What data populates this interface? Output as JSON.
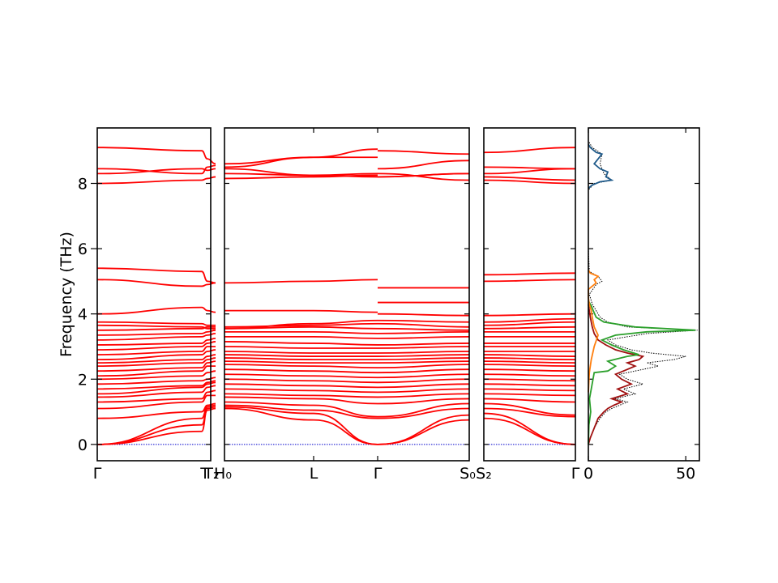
{
  "chart_data": [
    {
      "type": "line",
      "title": "",
      "ylabel": "Frequency (THz)",
      "ylim": [
        -0.5,
        9.7
      ],
      "yticks": [
        0,
        2,
        4,
        6,
        8
      ],
      "line_color": "#ff0000",
      "zero_line_color": "#0000cc",
      "segments": [
        {
          "x_ticks": [
            "Γ",
            "T",
            "T₂",
            "H₀"
          ],
          "bands": [
            [
              0,
              0.8,
              1.15,
              1.2
            ],
            [
              0,
              0.6,
              1.05,
              1.1
            ],
            [
              0,
              0.4,
              1.1,
              1.15
            ],
            [
              0.8,
              1.0,
              1.2,
              1.25
            ],
            [
              1.1,
              1.3,
              1.5,
              1.5
            ],
            [
              1.3,
              1.4,
              1.6,
              1.65
            ],
            [
              1.45,
              1.6,
              1.75,
              1.8
            ],
            [
              1.55,
              1.75,
              1.85,
              1.9
            ],
            [
              1.7,
              1.8,
              1.9,
              1.95
            ],
            [
              1.85,
              1.95,
              2.0,
              2.05
            ],
            [
              2.0,
              2.1,
              2.2,
              2.25
            ],
            [
              2.1,
              2.25,
              2.4,
              2.4
            ],
            [
              2.25,
              2.35,
              2.5,
              2.55
            ],
            [
              2.4,
              2.5,
              2.6,
              2.65
            ],
            [
              2.5,
              2.6,
              2.7,
              2.75
            ],
            [
              2.6,
              2.75,
              2.85,
              2.9
            ],
            [
              2.75,
              2.85,
              3.0,
              3.0
            ],
            [
              2.9,
              3.0,
              3.1,
              3.15
            ],
            [
              3.05,
              3.1,
              3.2,
              3.25
            ],
            [
              3.2,
              3.3,
              3.35,
              3.4
            ],
            [
              3.35,
              3.4,
              3.45,
              3.5
            ],
            [
              3.5,
              3.55,
              3.6,
              3.6
            ],
            [
              3.65,
              3.6,
              3.55,
              3.55
            ],
            [
              3.75,
              3.7,
              3.65,
              3.65
            ],
            [
              4.0,
              4.2,
              4.1,
              4.05
            ],
            [
              5.4,
              5.3,
              5.0,
              4.95
            ],
            [
              5.05,
              4.85,
              4.9,
              4.95
            ],
            [
              8.0,
              8.1,
              8.15,
              8.2
            ],
            [
              8.3,
              8.45,
              8.4,
              8.45
            ],
            [
              8.45,
              8.3,
              8.5,
              8.55
            ],
            [
              9.1,
              9.0,
              8.75,
              8.6
            ]
          ]
        },
        {
          "x_ticks": [
            "H₀",
            "L",
            "Γ"
          ],
          "bands": [
            [
              1.15,
              0.95,
              0
            ],
            [
              1.1,
              0.75,
              0
            ],
            [
              1.2,
              1.05,
              0.8
            ],
            [
              1.3,
              1.2,
              0.85
            ],
            [
              1.45,
              1.4,
              1.25
            ],
            [
              1.55,
              1.5,
              1.45
            ],
            [
              1.7,
              1.65,
              1.6
            ],
            [
              1.85,
              1.8,
              1.75
            ],
            [
              2.0,
              1.95,
              1.9
            ],
            [
              2.15,
              2.1,
              2.05
            ],
            [
              2.3,
              2.25,
              2.2
            ],
            [
              2.45,
              2.4,
              2.35
            ],
            [
              2.55,
              2.5,
              2.5
            ],
            [
              2.65,
              2.6,
              2.6
            ],
            [
              2.75,
              2.7,
              2.7
            ],
            [
              2.85,
              2.8,
              2.8
            ],
            [
              3.0,
              2.95,
              2.95
            ],
            [
              3.15,
              3.1,
              3.05
            ],
            [
              3.3,
              3.3,
              3.25
            ],
            [
              3.45,
              3.45,
              3.4
            ],
            [
              3.55,
              3.6,
              3.55
            ],
            [
              3.6,
              3.65,
              3.7
            ],
            [
              3.55,
              3.7,
              3.8
            ],
            [
              4.1,
              4.1,
              4.05
            ],
            [
              4.95,
              5.0,
              5.05
            ],
            [
              8.15,
              8.2,
              8.25
            ],
            [
              8.3,
              8.25,
              8.3
            ],
            [
              8.45,
              8.25,
              8.2
            ],
            [
              8.5,
              8.8,
              8.8
            ],
            [
              8.6,
              8.8,
              9.05
            ]
          ]
        },
        {
          "x_ticks": [
            "Γ",
            "S₀"
          ],
          "bands": [
            [
              0,
              0.9
            ],
            [
              0,
              0.75
            ],
            [
              0.8,
              1.1
            ],
            [
              0.85,
              1.25
            ],
            [
              1.25,
              1.4
            ],
            [
              1.45,
              1.55
            ],
            [
              1.6,
              1.7
            ],
            [
              1.75,
              1.85
            ],
            [
              1.9,
              2.0
            ],
            [
              2.05,
              2.15
            ],
            [
              2.2,
              2.3
            ],
            [
              2.35,
              2.45
            ],
            [
              2.5,
              2.55
            ],
            [
              2.6,
              2.65
            ],
            [
              2.7,
              2.75
            ],
            [
              2.8,
              2.85
            ],
            [
              2.95,
              3.0
            ],
            [
              3.05,
              3.1
            ],
            [
              3.25,
              3.3
            ],
            [
              3.4,
              3.45
            ],
            [
              3.55,
              3.5
            ],
            [
              3.7,
              3.6
            ],
            [
              3.8,
              3.75
            ],
            [
              4.0,
              3.95
            ],
            [
              4.35,
              4.35
            ],
            [
              4.8,
              4.8
            ],
            [
              8.2,
              8.3
            ],
            [
              8.3,
              8.1
            ],
            [
              8.2,
              8.3
            ],
            [
              8.45,
              8.7
            ],
            [
              9.0,
              8.9
            ]
          ]
        },
        {
          "x_ticks": [
            "S₂",
            "Γ"
          ],
          "bands": [
            [
              0.95,
              0
            ],
            [
              0.8,
              0
            ],
            [
              1.1,
              0.85
            ],
            [
              1.25,
              0.9
            ],
            [
              1.4,
              1.3
            ],
            [
              1.55,
              1.5
            ],
            [
              1.7,
              1.65
            ],
            [
              1.85,
              1.8
            ],
            [
              2.0,
              1.95
            ],
            [
              2.15,
              2.1
            ],
            [
              2.3,
              2.25
            ],
            [
              2.45,
              2.4
            ],
            [
              2.55,
              2.5
            ],
            [
              2.65,
              2.6
            ],
            [
              2.75,
              2.7
            ],
            [
              2.85,
              2.85
            ],
            [
              3.0,
              3.0
            ],
            [
              3.1,
              3.1
            ],
            [
              3.3,
              3.3
            ],
            [
              3.45,
              3.45
            ],
            [
              3.55,
              3.6
            ],
            [
              3.65,
              3.75
            ],
            [
              3.75,
              3.85
            ],
            [
              3.95,
              4.0
            ],
            [
              5.0,
              5.05
            ],
            [
              5.2,
              5.25
            ],
            [
              8.1,
              8.0
            ],
            [
              8.2,
              8.1
            ],
            [
              8.3,
              8.45
            ],
            [
              8.5,
              8.45
            ],
            [
              8.95,
              9.1
            ]
          ]
        }
      ]
    },
    {
      "type": "line",
      "title": "",
      "xlim": [
        0,
        57
      ],
      "xticks": [
        0,
        50
      ],
      "ylim": [
        -0.5,
        9.7
      ],
      "series": [
        {
          "color": "#000000",
          "style": "dotted",
          "points": [
            [
              0,
              0
            ],
            [
              1,
              0.2
            ],
            [
              3,
              0.5
            ],
            [
              6,
              0.8
            ],
            [
              9,
              1.0
            ],
            [
              12,
              1.1
            ],
            [
              16,
              1.2
            ],
            [
              20,
              1.3
            ],
            [
              14,
              1.4
            ],
            [
              24,
              1.55
            ],
            [
              18,
              1.7
            ],
            [
              28,
              1.85
            ],
            [
              20,
              2.0
            ],
            [
              16,
              2.15
            ],
            [
              28,
              2.3
            ],
            [
              36,
              2.4
            ],
            [
              30,
              2.5
            ],
            [
              44,
              2.6
            ],
            [
              50,
              2.7
            ],
            [
              32,
              2.8
            ],
            [
              22,
              2.9
            ],
            [
              14,
              3.05
            ],
            [
              10,
              3.2
            ],
            [
              30,
              3.4
            ],
            [
              56,
              3.5
            ],
            [
              20,
              3.6
            ],
            [
              10,
              3.75
            ],
            [
              6,
              3.9
            ],
            [
              4,
              4.1
            ],
            [
              2,
              4.3
            ],
            [
              0.5,
              4.6
            ],
            [
              4,
              4.9
            ],
            [
              7,
              5.0
            ],
            [
              5,
              5.15
            ],
            [
              0.5,
              5.3
            ],
            [
              0,
              6
            ],
            [
              0,
              7.8
            ],
            [
              3,
              8.0
            ],
            [
              12,
              8.1
            ],
            [
              8,
              8.3
            ],
            [
              6,
              8.6
            ],
            [
              7,
              8.9
            ],
            [
              2,
              9.1
            ],
            [
              0,
              9.3
            ]
          ]
        },
        {
          "color": "#a01010",
          "style": "solid",
          "points": [
            [
              0,
              0
            ],
            [
              1,
              0.2
            ],
            [
              3,
              0.5
            ],
            [
              5,
              0.8
            ],
            [
              8,
              1.0
            ],
            [
              10,
              1.1
            ],
            [
              13,
              1.2
            ],
            [
              17,
              1.3
            ],
            [
              12,
              1.4
            ],
            [
              20,
              1.55
            ],
            [
              15,
              1.7
            ],
            [
              22,
              1.85
            ],
            [
              17,
              2.0
            ],
            [
              14,
              2.15
            ],
            [
              20,
              2.3
            ],
            [
              24,
              2.4
            ],
            [
              20,
              2.5
            ],
            [
              26,
              2.6
            ],
            [
              28,
              2.7
            ],
            [
              20,
              2.8
            ],
            [
              14,
              2.9
            ],
            [
              9,
              3.05
            ],
            [
              5,
              3.2
            ],
            [
              3,
              3.4
            ],
            [
              2,
              3.6
            ],
            [
              1,
              3.9
            ],
            [
              0,
              4.3
            ]
          ]
        },
        {
          "color": "#2ca02c",
          "style": "solid",
          "points": [
            [
              0,
              0
            ],
            [
              0.3,
              0.6
            ],
            [
              1.2,
              1.0
            ],
            [
              0.6,
              1.4
            ],
            [
              1.8,
              1.8
            ],
            [
              3,
              2.2
            ],
            [
              10,
              2.25
            ],
            [
              14,
              2.4
            ],
            [
              10,
              2.55
            ],
            [
              20,
              2.7
            ],
            [
              26,
              2.75
            ],
            [
              18,
              2.9
            ],
            [
              12,
              3.05
            ],
            [
              7,
              3.2
            ],
            [
              14,
              3.35
            ],
            [
              30,
              3.45
            ],
            [
              55,
              3.5
            ],
            [
              24,
              3.6
            ],
            [
              8,
              3.75
            ],
            [
              4,
              3.9
            ],
            [
              2.5,
              4.1
            ],
            [
              1.5,
              4.25
            ],
            [
              0,
              4.4
            ]
          ]
        },
        {
          "color": "#ff7f0e",
          "style": "solid",
          "points": [
            [
              0,
              1.6
            ],
            [
              0.5,
              2.2
            ],
            [
              1.5,
              2.6
            ],
            [
              3,
              3.0
            ],
            [
              5,
              3.35
            ],
            [
              3,
              3.6
            ],
            [
              2,
              3.9
            ],
            [
              1.5,
              4.1
            ],
            [
              0.5,
              4.3
            ],
            [
              0,
              4.5
            ],
            [
              0,
              4.75
            ],
            [
              2,
              4.85
            ],
            [
              4,
              4.95
            ],
            [
              3,
              5.05
            ],
            [
              5,
              5.15
            ],
            [
              1,
              5.25
            ],
            [
              0,
              5.35
            ]
          ]
        },
        {
          "color": "#1f5a8a",
          "style": "solid",
          "points": [
            [
              0,
              7.85
            ],
            [
              2,
              7.95
            ],
            [
              6,
              8.05
            ],
            [
              12,
              8.1
            ],
            [
              9,
              8.2
            ],
            [
              10,
              8.35
            ],
            [
              6,
              8.45
            ],
            [
              3,
              8.6
            ],
            [
              5,
              8.75
            ],
            [
              7,
              8.9
            ],
            [
              4,
              8.95
            ],
            [
              2,
              9.05
            ],
            [
              1,
              9.1
            ],
            [
              0,
              9.2
            ]
          ]
        }
      ]
    }
  ]
}
